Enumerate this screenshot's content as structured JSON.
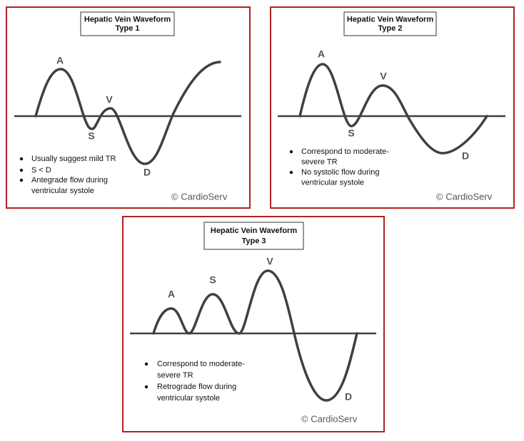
{
  "panels": [
    {
      "title": [
        "Hepatic Vein Waveform",
        "Type 1"
      ],
      "labels": {
        "A": "A",
        "S": "S",
        "V": "V",
        "D": "D"
      },
      "bullets": [
        [
          "Usually suggest mild TR"
        ],
        [
          "S < D"
        ],
        [
          "Antegrade flow during",
          "ventricular systole"
        ]
      ],
      "credit": "© CardioServ"
    },
    {
      "title": [
        "Hepatic Vein Waveform",
        "Type 2"
      ],
      "labels": {
        "A": "A",
        "S": "S",
        "V": "V",
        "D": "D"
      },
      "bullets": [
        [
          "Correspond to moderate-",
          "severe TR"
        ],
        [
          "No systolic flow during",
          "ventricular systole"
        ]
      ],
      "credit": "© CardioServ"
    },
    {
      "title": [
        "Hepatic Vein Waveform",
        "Type 3"
      ],
      "labels": {
        "A": "A",
        "S": "S",
        "V": "V",
        "D": "D"
      },
      "bullets": [
        [
          "Correspond to moderate-",
          "severe TR"
        ],
        [
          "Retrograde flow during",
          "ventricular systole"
        ]
      ],
      "credit": "© CardioServ"
    }
  ]
}
